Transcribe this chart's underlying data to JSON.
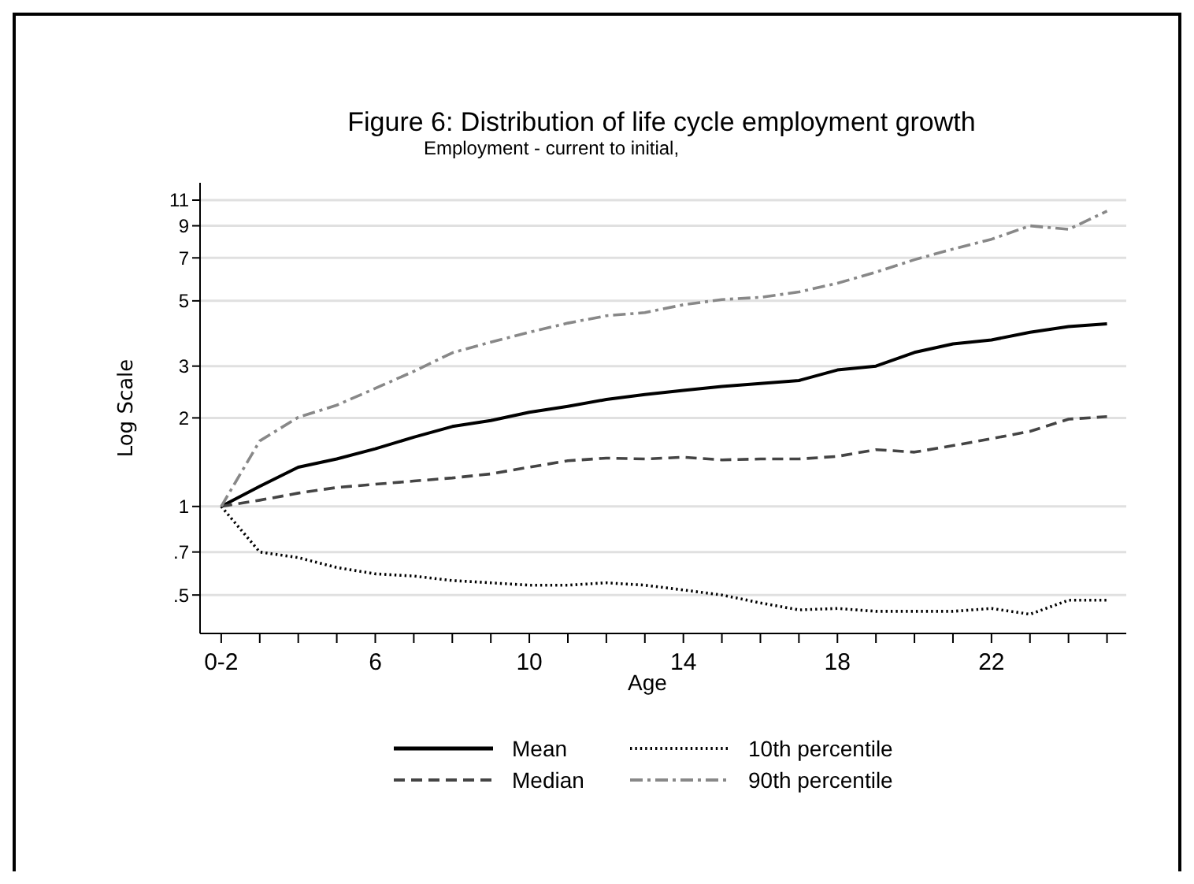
{
  "chart_data": {
    "type": "line",
    "title": "Figure 6: Distribution of life cycle employment growth",
    "subtitle": "Employment - current to initial,",
    "xlabel": "Age",
    "ylabel": "Log Scale",
    "x": [
      2,
      3,
      4,
      5,
      6,
      7,
      8,
      9,
      10,
      11,
      12,
      13,
      14,
      15,
      16,
      17,
      18,
      19,
      20,
      21,
      22,
      23,
      24,
      25
    ],
    "series": [
      {
        "name": "Mean",
        "color": "#000000",
        "line_style": "solid",
        "values": [
          1,
          1.17,
          1.36,
          1.45,
          1.57,
          1.72,
          1.87,
          1.96,
          2.09,
          2.19,
          2.31,
          2.4,
          2.48,
          2.56,
          2.62,
          2.68,
          2.91,
          3.0,
          3.34,
          3.57,
          3.68,
          3.91,
          4.09,
          4.18
        ]
      },
      {
        "name": "Median",
        "color": "#444444",
        "line_style": "dashed",
        "values": [
          1,
          1.05,
          1.11,
          1.16,
          1.19,
          1.22,
          1.25,
          1.29,
          1.36,
          1.43,
          1.46,
          1.45,
          1.47,
          1.44,
          1.45,
          1.45,
          1.48,
          1.56,
          1.53,
          1.61,
          1.7,
          1.8,
          1.98,
          2.02
        ]
      },
      {
        "name": "10th percentile",
        "color": "#000000",
        "line_style": "dotted",
        "values": [
          1,
          0.7,
          0.67,
          0.62,
          0.59,
          0.58,
          0.56,
          0.55,
          0.54,
          0.54,
          0.55,
          0.54,
          0.52,
          0.5,
          0.47,
          0.445,
          0.45,
          0.44,
          0.44,
          0.44,
          0.45,
          0.43,
          0.48,
          0.48
        ]
      },
      {
        "name": "90th percentile",
        "color": "#888888",
        "line_style": "dashdot",
        "values": [
          1,
          1.67,
          2.01,
          2.21,
          2.52,
          2.88,
          3.33,
          3.62,
          3.91,
          4.2,
          4.45,
          4.56,
          4.85,
          5.05,
          5.14,
          5.36,
          5.74,
          6.26,
          6.9,
          7.5,
          8.1,
          9.0,
          8.75,
          10.1
        ]
      }
    ],
    "xlim": [
      1.45,
      25.5
    ],
    "xticks": [
      {
        "value": 2,
        "label": "0-2"
      },
      {
        "value": 3,
        "label": null
      },
      {
        "value": 4,
        "label": null
      },
      {
        "value": 5,
        "label": null
      },
      6,
      {
        "value": 7,
        "label": null
      },
      {
        "value": 8,
        "label": null
      },
      {
        "value": 9,
        "label": null
      },
      10,
      {
        "value": 11,
        "label": null
      },
      {
        "value": 12,
        "label": null
      },
      {
        "value": 13,
        "label": null
      },
      14,
      {
        "value": 15,
        "label": null
      },
      {
        "value": 16,
        "label": null
      },
      {
        "value": 17,
        "label": null
      },
      18,
      {
        "value": 19,
        "label": null
      },
      {
        "value": 20,
        "label": null
      },
      {
        "value": 21,
        "label": null
      },
      22,
      {
        "value": 23,
        "label": null
      },
      {
        "value": 24,
        "label": null
      },
      {
        "value": 25,
        "label": null
      }
    ],
    "ylim": [
      0.37,
      12.6
    ],
    "yticks": [
      {
        "value": 0.5,
        "label": ".5"
      },
      {
        "value": 0.7,
        "label": ".7"
      },
      1,
      2,
      3,
      5,
      7,
      9,
      11
    ],
    "log": true,
    "grid": "y",
    "legend": "bottom"
  }
}
